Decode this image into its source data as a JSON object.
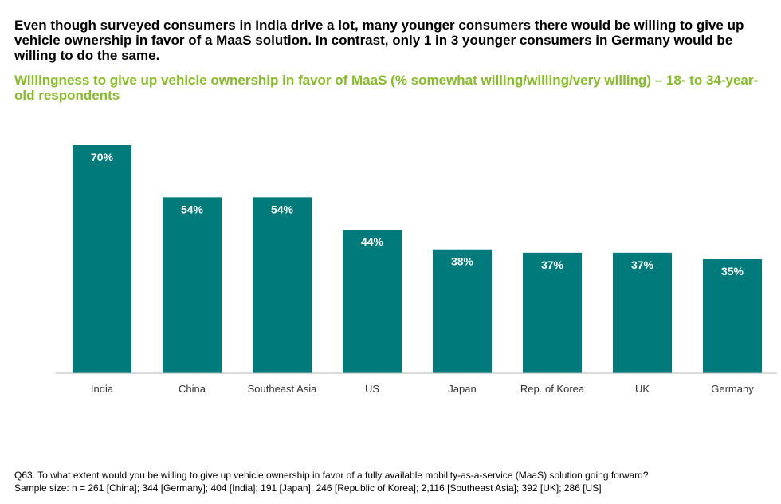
{
  "headline": "Even though surveyed consumers in India drive a lot, many younger consumers there would be willing to give up vehicle ownership in favor of a MaaS solution. In contrast, only 1 in 3 younger consumers in Germany would be willing to do the same.",
  "chart_data": {
    "type": "bar",
    "title": "Willingness to give up vehicle ownership in favor of MaaS (% somewhat willing/willing/very willing) – 18- to 34-year-old respondents",
    "categories": [
      "India",
      "China",
      "Southeast Asia",
      "US",
      "Japan",
      "Rep. of Korea",
      "UK",
      "Germany"
    ],
    "values": [
      70,
      54,
      54,
      44,
      38,
      37,
      37,
      35
    ],
    "data_labels": [
      "70%",
      "54%",
      "54%",
      "44%",
      "38%",
      "37%",
      "37%",
      "35%"
    ],
    "unit": "%",
    "ylim": [
      0,
      70
    ],
    "grid": false,
    "legend": "none",
    "bar_color": "#007a7a",
    "label_color": "#ffffff",
    "xlabel": "",
    "ylabel": ""
  },
  "colors": {
    "title_green": "#86bc25",
    "bar_teal": "#007a7a",
    "baseline": "#b5b5b5"
  },
  "footnote": {
    "question": "Q63. To what extent would you be willing to give up vehicle ownership in favor of a fully available mobility-as-a-service (MaaS) solution going forward?",
    "sample": "Sample size: n = 261 [China]; 344 [Germany]; 404 [India]; 191 [Japan]; 246 [Republic of Korea]; 2,116 [Southeast Asia]; 392 [UK]; 286 [US]"
  }
}
